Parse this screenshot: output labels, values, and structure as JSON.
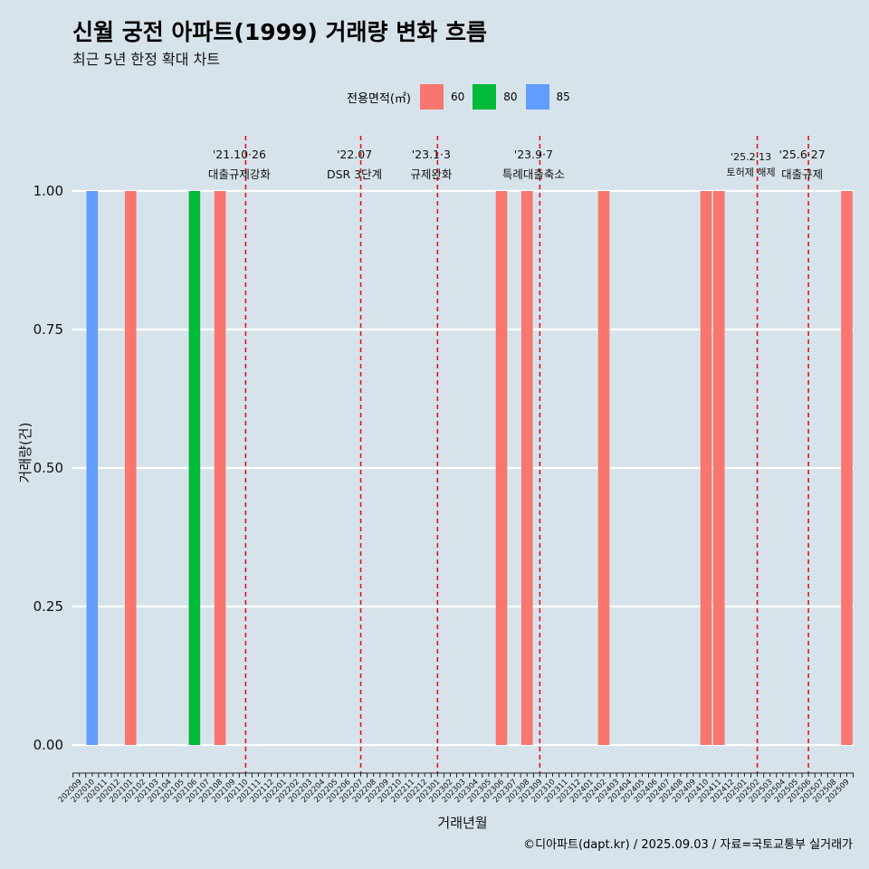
{
  "header": {
    "title": "신월 궁전 아파트(1999) 거래량 변화 흐름",
    "subtitle": "최근 5년 한정 확대 차트"
  },
  "legend": {
    "title": "전용면적(㎡)",
    "items": [
      {
        "label": "60",
        "color": "#F8766D"
      },
      {
        "label": "80",
        "color": "#00BA38"
      },
      {
        "label": "85",
        "color": "#619CFF"
      }
    ]
  },
  "caption": "©디아파트(dapt.kr) / 2025.09.03 / 자료=국토교통부 실거래가",
  "chart_data": {
    "type": "bar",
    "title": "신월 궁전 아파트(1999) 거래량 변화 흐름",
    "xlabel": "거래년월",
    "ylabel": "거래량(건)",
    "ylim": [
      -0.045,
      1.0
    ],
    "yticks": [
      "0.00",
      "0.25",
      "0.50",
      "0.75",
      "1.00"
    ],
    "ytick_values": [
      0,
      0.25,
      0.5,
      0.75,
      1.0
    ],
    "categories": [
      "202009",
      "202010",
      "202011",
      "202012",
      "202101",
      "202102",
      "202103",
      "202104",
      "202105",
      "202106",
      "202107",
      "202108",
      "202109",
      "202110",
      "202111",
      "202112",
      "202201",
      "202202",
      "202203",
      "202204",
      "202205",
      "202206",
      "202207",
      "202208",
      "202209",
      "202210",
      "202211",
      "202212",
      "202301",
      "202302",
      "202303",
      "202304",
      "202305",
      "202306",
      "202307",
      "202308",
      "202309",
      "202310",
      "202311",
      "202312",
      "202401",
      "202402",
      "202403",
      "202404",
      "202405",
      "202406",
      "202407",
      "202408",
      "202409",
      "202410",
      "202411",
      "202412",
      "202501",
      "202502",
      "202503",
      "202504",
      "202505",
      "202506",
      "202507",
      "202508",
      "202509"
    ],
    "series": [
      {
        "name": "60",
        "color": "#F8766D",
        "points": [
          {
            "x": "202101",
            "y": 1
          },
          {
            "x": "202108",
            "y": 1
          },
          {
            "x": "202306",
            "y": 1
          },
          {
            "x": "202308",
            "y": 1
          },
          {
            "x": "202402",
            "y": 1
          },
          {
            "x": "202410",
            "y": 1
          },
          {
            "x": "202411",
            "y": 1
          },
          {
            "x": "202509",
            "y": 1
          }
        ]
      },
      {
        "name": "80",
        "color": "#00BA38",
        "points": [
          {
            "x": "202106",
            "y": 1
          }
        ]
      },
      {
        "name": "85",
        "color": "#619CFF",
        "points": [
          {
            "x": "202010",
            "y": 1
          }
        ]
      }
    ],
    "events": [
      {
        "date": "'21.10·26",
        "label": "대출규제강화",
        "x": "202110"
      },
      {
        "date": "'22.07",
        "label": "DSR 3단계",
        "x": "202207"
      },
      {
        "date": "'23.1·3",
        "label": "규제완화",
        "x": "202301"
      },
      {
        "date": "'23.9·7",
        "label": "특례대출축소",
        "x": "202309"
      },
      {
        "date": "'25.2·13",
        "label": "토허제 해제",
        "x": "202502"
      },
      {
        "date": "'25.6·27",
        "label": "대출규제",
        "x": "202506"
      }
    ]
  }
}
